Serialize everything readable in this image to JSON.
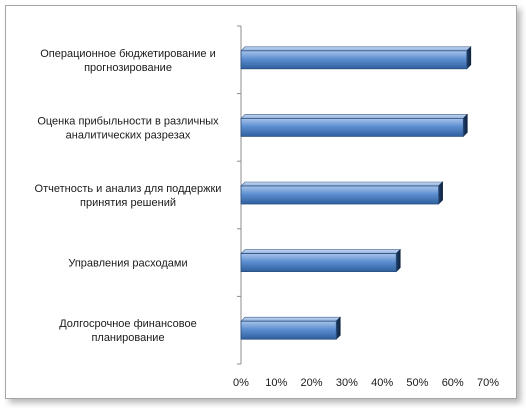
{
  "chart_data": {
    "type": "bar",
    "orientation": "horizontal",
    "categories": [
      [
        "Операционное бюджетирование  и",
        "прогнозирование"
      ],
      [
        "Оценка прибыльности в различных",
        "аналитических разрезах"
      ],
      [
        "Отчетность и анализ для поддержки",
        "принятия решений"
      ],
      [
        "Управления расходами"
      ],
      [
        "Долгосрочное финансовое",
        "планирование"
      ]
    ],
    "values": [
      0.64,
      0.63,
      0.56,
      0.44,
      0.27
    ],
    "xlim": [
      0,
      0.7
    ],
    "xticks": [
      "0%",
      "10%",
      "20%",
      "30%",
      "40%",
      "50%",
      "60%",
      "70%"
    ],
    "grid": false,
    "bar_color": "#4f81bd",
    "title": "",
    "xlabel": "",
    "ylabel": ""
  }
}
